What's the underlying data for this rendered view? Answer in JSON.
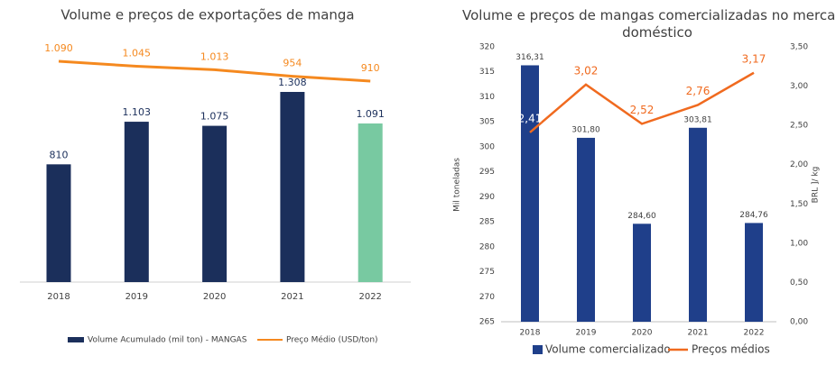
{
  "chart_data": [
    {
      "type": "combo",
      "title": "Volume e preços de exportações de manga",
      "categories": [
        "2018",
        "2019",
        "2020",
        "2021",
        "2022"
      ],
      "series": [
        {
          "name": "Volume Acumulado (mil ton) - MANGAS",
          "type": "bar",
          "color": "#1b2f5b",
          "colors": [
            "#1b2f5b",
            "#1b2f5b",
            "#1b2f5b",
            "#1b2f5b",
            "#78c9a1"
          ],
          "values": [
            810,
            1103,
            1075,
            1308,
            1091
          ],
          "value_labels": [
            "810",
            "1.103",
            "1.075",
            "1.308",
            "1.091"
          ]
        },
        {
          "name": "Preço Médio (USD/ton)",
          "type": "line",
          "color": "#f5891f",
          "values": [
            1090,
            1045,
            1013,
            954,
            910
          ],
          "value_labels": [
            "1.090",
            "1.045",
            "1.013",
            "954",
            "910"
          ]
        }
      ]
    },
    {
      "type": "combo",
      "title": "Volume e preços de mangas comercializadas no mercado doméstico",
      "ylabel": "Mil toneladas",
      "y2label": "BRL ]/ kg",
      "categories": [
        "2018",
        "2019",
        "2020",
        "2021",
        "2022"
      ],
      "ylim": [
        265,
        320
      ],
      "yticks": [
        265,
        270,
        275,
        280,
        285,
        290,
        295,
        300,
        305,
        310,
        315,
        320
      ],
      "y2lim": [
        0,
        3.5
      ],
      "y2ticks": [
        {
          "value": 0,
          "label": "0,00"
        },
        {
          "value": 0.5,
          "label": "0,50"
        },
        {
          "value": 1,
          "label": "1,00"
        },
        {
          "value": 1.5,
          "label": "1,50"
        },
        {
          "value": 2,
          "label": "2,00"
        },
        {
          "value": 2.5,
          "label": "2,50"
        },
        {
          "value": 3,
          "label": "3,00"
        },
        {
          "value": 3.5,
          "label": "3,50"
        }
      ],
      "series": [
        {
          "name": "Volume comercializado",
          "type": "bar",
          "color": "#1f3f8a",
          "values": [
            316.31,
            301.8,
            284.6,
            303.81,
            284.76
          ],
          "value_labels": [
            "316,31",
            "301,80",
            "284,60",
            "303,81",
            "284,76"
          ]
        },
        {
          "name": "Preços médios",
          "type": "line",
          "axis": "y2",
          "color": "#f06a1f",
          "values": [
            2.41,
            3.02,
            2.52,
            2.76,
            3.17
          ],
          "value_labels": [
            "2,41",
            "3,02",
            "2,52",
            "2,76",
            "3,17"
          ]
        }
      ]
    }
  ]
}
